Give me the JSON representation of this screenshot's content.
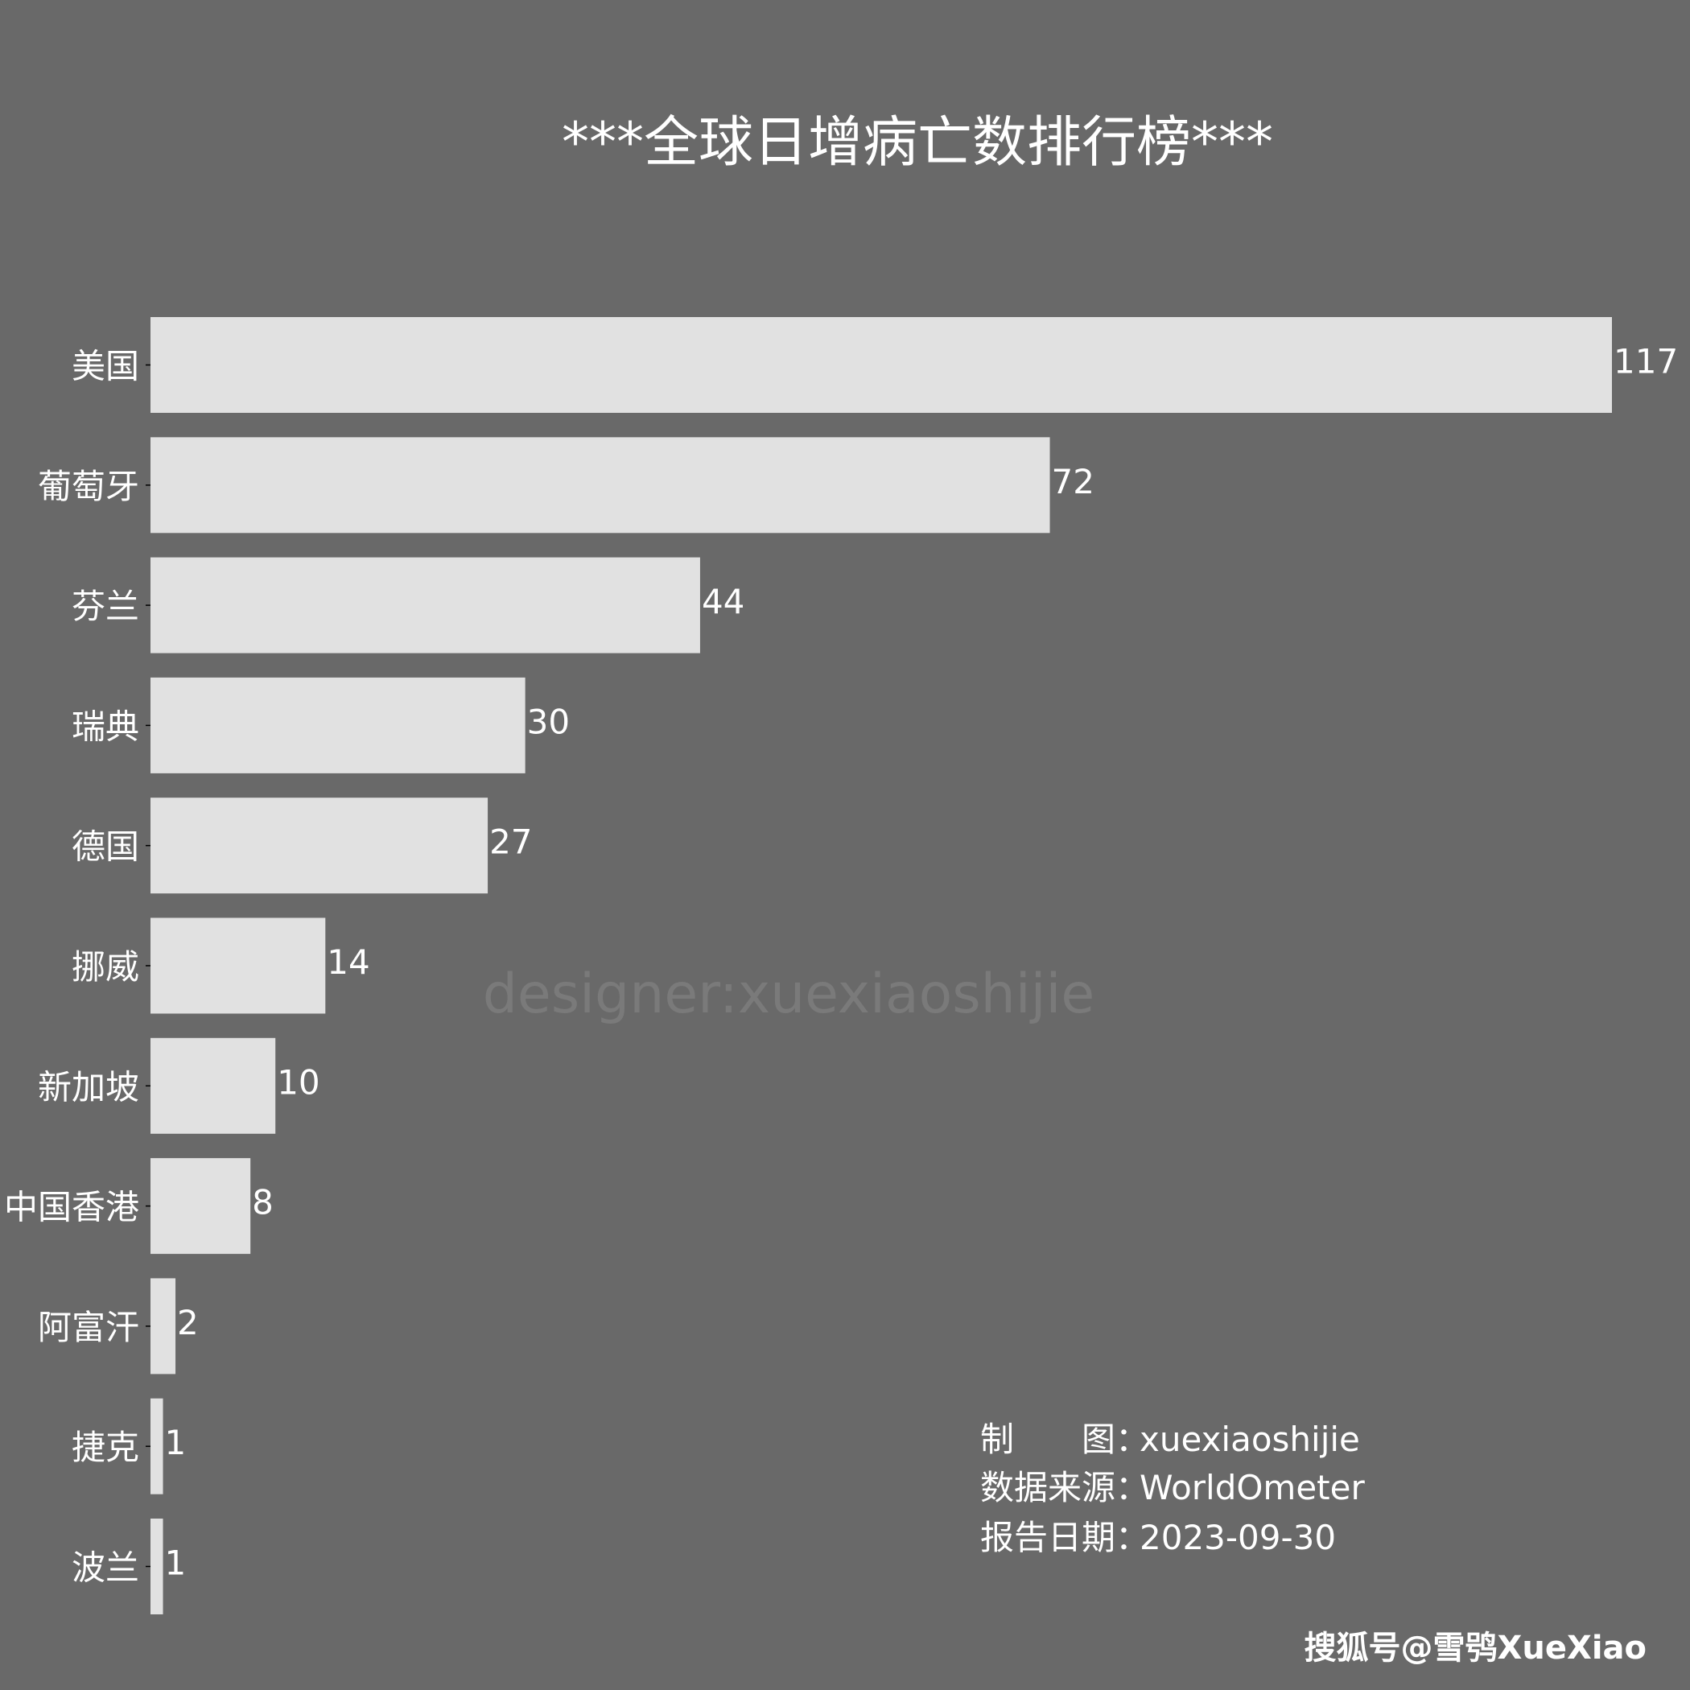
{
  "chart_data": {
    "type": "bar",
    "orientation": "horizontal",
    "title": "***全球日增病亡数排行榜***",
    "xlabel": "",
    "ylabel": "",
    "categories": [
      "美国",
      "葡萄牙",
      "芬兰",
      "瑞典",
      "德国",
      "挪威",
      "新加坡",
      "中国香港",
      "阿富汗",
      "捷克",
      "波兰"
    ],
    "values": [
      117,
      72,
      44,
      30,
      27,
      14,
      10,
      8,
      2,
      1,
      1
    ],
    "xlim": [
      0,
      117
    ],
    "grid": false,
    "legend": "none"
  },
  "colors": {
    "background": "#696969",
    "bar": "#e1e1e1",
    "text": "#ffffff",
    "watermark": "#7a7a7a"
  },
  "watermark": "designer:xuexiaoshijie",
  "credits": [
    {
      "key": "制　　图：",
      "value": "xuexiaoshijie"
    },
    {
      "key": "数据来源：",
      "value": "WorldOmeter"
    },
    {
      "key": "报告日期：",
      "value": "2023-09-30"
    }
  ],
  "source_tag": "搜狐号@雪鸮XueXiao"
}
